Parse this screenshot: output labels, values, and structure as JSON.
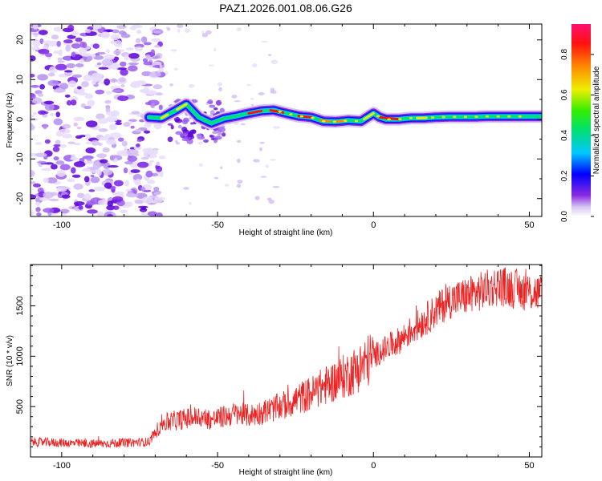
{
  "title": "PAZ1.2026.001.08.06.G26",
  "chart_data": [
    {
      "type": "heatmap",
      "name": "spectrogram",
      "xlabel": "Height of straight line (km)",
      "ylabel": "Frequency (Hz)",
      "xlim": [
        -110,
        54
      ],
      "ylim": [
        -24.5,
        24
      ],
      "xticks": [
        -100,
        -50,
        0,
        50
      ],
      "xtick_labels": [
        "-100",
        "-50",
        "0",
        "50"
      ],
      "yticks": [
        -20,
        -10,
        0,
        10,
        20
      ],
      "ytick_labels": [
        "-20",
        "-10",
        "0",
        "10",
        "20"
      ],
      "ridge": {
        "x": [
          -72,
          -68,
          -64,
          -60,
          -56,
          -52,
          -48,
          -44,
          -40,
          -36,
          -32,
          -28,
          -24,
          -20,
          -16,
          -12,
          -8,
          -4,
          0,
          2,
          4,
          8,
          12,
          16,
          20,
          24,
          28,
          32,
          36,
          40,
          44,
          48,
          54
        ],
        "y": [
          0.5,
          0.3,
          2.0,
          3.8,
          0.5,
          -1.0,
          0.2,
          0.8,
          1.5,
          2.1,
          2.3,
          1.5,
          0.8,
          0.5,
          -0.5,
          -0.6,
          -0.3,
          -0.5,
          1.5,
          0.5,
          0.0,
          0.0,
          0.3,
          0.3,
          0.5,
          0.6,
          0.6,
          0.6,
          0.7,
          0.7,
          0.7,
          0.7,
          0.7
        ]
      },
      "noise_region_x": [
        -110,
        -70
      ]
    },
    {
      "type": "line",
      "name": "snr",
      "xlabel": "Height of straight line (km)",
      "ylabel": "SNR (10 * v/v)",
      "xlim": [
        -110,
        54
      ],
      "ylim": [
        0,
        1910
      ],
      "xticks": [
        -100,
        -50,
        0,
        50
      ],
      "xtick_labels": [
        "-100",
        "-50",
        "0",
        "50"
      ],
      "yticks": [
        500,
        1000,
        1500
      ],
      "ytick_labels": [
        "500",
        "1000",
        "1500"
      ],
      "series": [
        {
          "name": "SNR",
          "color": "#ee2222",
          "x": [
            -110,
            -100,
            -90,
            -80,
            -72,
            -68,
            -64,
            -60,
            -56,
            -52,
            -48,
            -44,
            -40,
            -36,
            -32,
            -28,
            -24,
            -20,
            -16,
            -12,
            -8,
            -4,
            0,
            4,
            8,
            12,
            16,
            20,
            24,
            28,
            32,
            36,
            40,
            44,
            48,
            54
          ],
          "y": [
            150,
            140,
            130,
            140,
            150,
            330,
            360,
            380,
            400,
            370,
            400,
            430,
            410,
            440,
            480,
            520,
            580,
            630,
            700,
            760,
            820,
            900,
            1000,
            1080,
            1150,
            1250,
            1350,
            1450,
            1550,
            1580,
            1620,
            1660,
            1700,
            1680,
            1650,
            1620
          ]
        }
      ]
    },
    {
      "type": "colorbar",
      "name": "colorbar",
      "label": "Normalized spectral amplitude",
      "range": [
        0,
        0.95
      ],
      "ticks": [
        0.0,
        0.2,
        0.4,
        0.6,
        0.8
      ],
      "tick_labels": [
        "0.0",
        "0.2",
        "0.4",
        "0.6",
        "0.8"
      ]
    }
  ]
}
